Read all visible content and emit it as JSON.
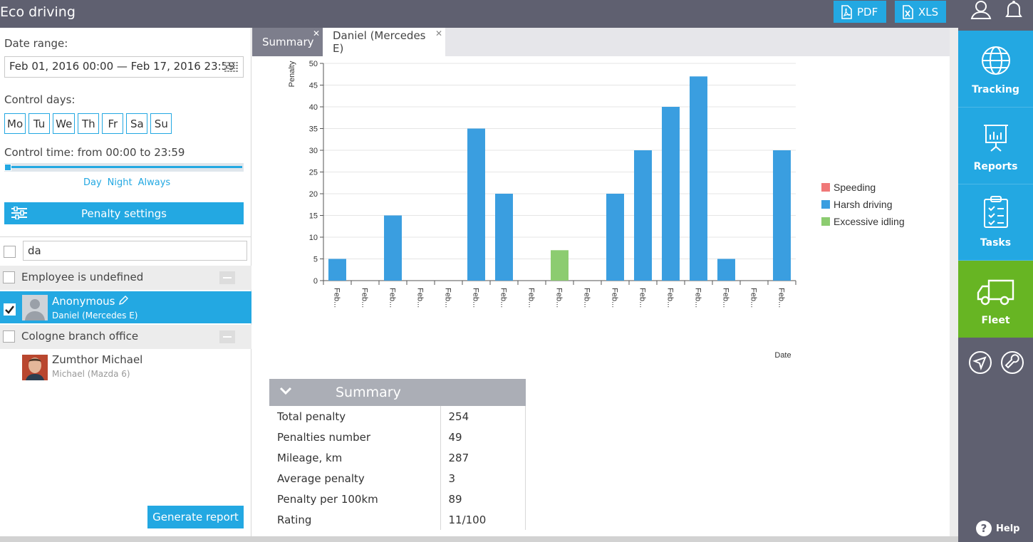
{
  "header": {
    "title": "Eco driving",
    "pdf_label": "PDF",
    "xls_label": "XLS"
  },
  "rightbar": {
    "items": [
      {
        "label": "Tracking",
        "icon": "globe-icon"
      },
      {
        "label": "Reports",
        "icon": "presentation-chart-icon"
      },
      {
        "label": "Tasks",
        "icon": "clipboard-checklist-icon"
      },
      {
        "label": "Fleet",
        "icon": "truck-icon"
      }
    ],
    "help_label": "Help"
  },
  "left": {
    "date_range_label": "Date range:",
    "date_range_value": "Feb 01, 2016 00:00 — Feb 17, 2016 23:59",
    "control_days_label": "Control days:",
    "days": [
      "Mo",
      "Tu",
      "We",
      "Th",
      "Fr",
      "Sa",
      "Su"
    ],
    "control_time_label": "Control time: from 00:00 to 23:59",
    "time_presets": [
      "Day",
      "Night",
      "Always"
    ],
    "penalty_settings_label": "Penalty settings",
    "filter_value": "da",
    "groups": [
      {
        "title": "Employee is undefined",
        "items": [
          {
            "name": "Anonymous",
            "vehicle": "Daniel (Mercedes E)",
            "checked": true
          }
        ]
      },
      {
        "title": "Cologne branch office",
        "items": [
          {
            "name": "Zumthor Michael",
            "vehicle": "Michael (Mazda 6)",
            "checked": false
          }
        ]
      }
    ],
    "generate_label": "Generate report"
  },
  "tabs": [
    {
      "label": "Summary",
      "active": false
    },
    {
      "label": "Daniel (Mercedes E)",
      "active": true
    }
  ],
  "chart_data": {
    "type": "bar",
    "title": "",
    "ylabel": "Penalty",
    "xlabel": "Date",
    "ylim": [
      0,
      50
    ],
    "yticks": [
      0,
      5,
      10,
      15,
      20,
      25,
      30,
      35,
      40,
      45,
      50
    ],
    "categories": [
      "Feb...",
      "Feb...",
      "Feb...",
      "Feb...",
      "Feb...",
      "Feb...",
      "Feb...",
      "Feb...",
      "Feb...",
      "Feb...",
      "Feb...",
      "Feb...",
      "Feb...",
      "Feb...",
      "Feb...",
      "Feb...",
      "Feb..."
    ],
    "series": [
      {
        "name": "Speeding",
        "color": "#f07878",
        "values": [
          0,
          0,
          0,
          0,
          0,
          0,
          0,
          0,
          0,
          0,
          0,
          0,
          0,
          0,
          0,
          0,
          0
        ]
      },
      {
        "name": "Harsh driving",
        "color": "#3a9ee0",
        "values": [
          5,
          0,
          15,
          0,
          0,
          35,
          20,
          0,
          0,
          0,
          20,
          30,
          40,
          47,
          5,
          0,
          30
        ]
      },
      {
        "name": "Excessive idling",
        "color": "#8ccc70",
        "values": [
          0,
          0,
          0,
          0,
          0,
          0,
          0,
          0,
          7,
          0,
          0,
          0,
          0,
          0,
          0,
          0,
          0
        ]
      }
    ],
    "grid": true,
    "legend": "right"
  },
  "summary": {
    "title": "Summary",
    "rows": [
      {
        "key": "Total penalty",
        "value": "254"
      },
      {
        "key": "Penalties number",
        "value": "49"
      },
      {
        "key": "Mileage, km",
        "value": "287"
      },
      {
        "key": "Average penalty",
        "value": "3"
      },
      {
        "key": "Penalty per 100km",
        "value": "89"
      },
      {
        "key": "Rating",
        "value": "11/100"
      }
    ]
  }
}
